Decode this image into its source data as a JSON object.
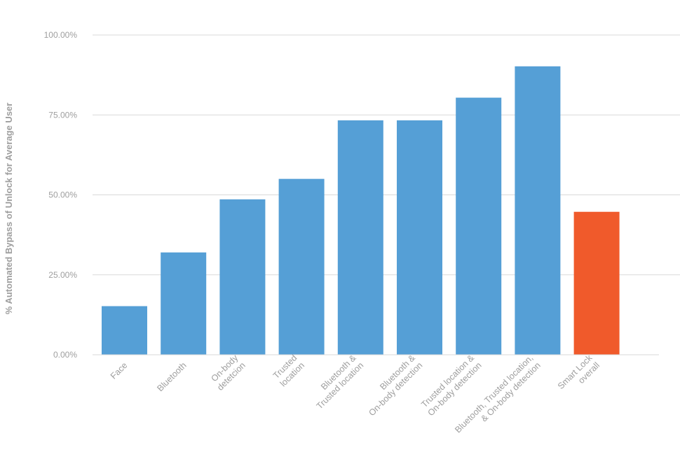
{
  "chart_data": {
    "type": "bar",
    "title": "",
    "xlabel": "",
    "ylabel": "% Automated Bypass of Unlock for Average User",
    "ylim": [
      0,
      100
    ],
    "yticks": [
      0,
      25,
      50,
      75,
      100
    ],
    "ytick_labels": [
      "0.00%",
      "25.00%",
      "50.00%",
      "75.00%",
      "100.00%"
    ],
    "grid": true,
    "categories": [
      [
        "Face"
      ],
      [
        "Bluetooth"
      ],
      [
        "On-body",
        "detetcion"
      ],
      [
        "Trusted",
        "location"
      ],
      [
        "Bluetooth &",
        "Trusted location"
      ],
      [
        "Bluetooth &",
        "On-body detection"
      ],
      [
        "Trusted location &",
        "On-body detection"
      ],
      [
        "Bluetooth, Trusted location,",
        "& On-body detection"
      ],
      [
        "Smart Lock",
        "overall"
      ]
    ],
    "values": [
      15.2,
      32.0,
      48.6,
      55.0,
      73.3,
      73.3,
      80.4,
      90.2,
      44.7
    ],
    "colors": [
      "#559fd6",
      "#559fd6",
      "#559fd6",
      "#559fd6",
      "#559fd6",
      "#559fd6",
      "#559fd6",
      "#559fd6",
      "#f05a2b"
    ]
  }
}
